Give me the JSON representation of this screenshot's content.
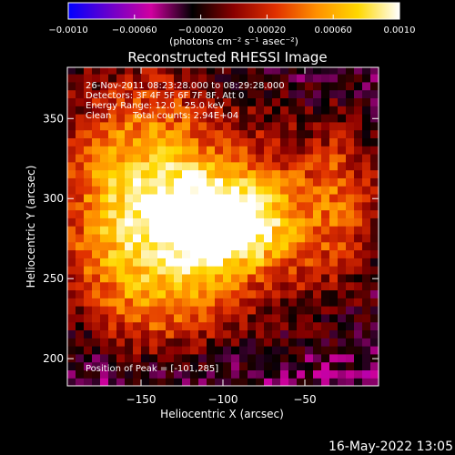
{
  "colorbar": {
    "ticks": [
      "−0.0010",
      "−0.00060",
      "−0.00020",
      "0.00020",
      "0.00060",
      "0.0010"
    ],
    "range": [
      -0.001,
      0.001
    ],
    "stops": [
      "#0000ff",
      "#6a00cc",
      "#d000a0",
      "#000000",
      "#8a0000",
      "#e03000",
      "#ff9000",
      "#ffd800",
      "#ffffff"
    ]
  },
  "unit_label": "(photons cm⁻² s⁻¹ asec⁻²)",
  "chart_data": {
    "type": "heatmap",
    "title": "Reconstructed RHESSI Image",
    "xlabel": "Heliocentric X (arcsec)",
    "ylabel": "Heliocentric Y (arcsec)",
    "xlim": [
      -195,
      -5
    ],
    "ylim": [
      183,
      382
    ],
    "xticks": [
      -150,
      -100,
      -50
    ],
    "yticks": [
      200,
      250,
      300,
      350
    ],
    "xtick_labels": [
      "−150",
      "−100",
      "−50"
    ],
    "ytick_labels": [
      "200",
      "250",
      "300",
      "350"
    ],
    "grid": false,
    "value_range": [
      -0.001,
      0.001
    ],
    "peak": {
      "x": -101,
      "y": 285
    },
    "annotations": {
      "time_range": "26-Nov-2011 08:23:28.000 to 08:29:28.000",
      "detectors": "Detectors: 3F 4F 5F 6F 7F 8F, Att 0",
      "energy": "Energy Range: 12.0 - 25.0 keV",
      "clean_label": "Clean",
      "total_counts": "Total counts: 2.94E+04",
      "peak_label": "Position of Peak = [-101,285]"
    }
  },
  "footer": {
    "date": "16-May-2022 13:05"
  }
}
